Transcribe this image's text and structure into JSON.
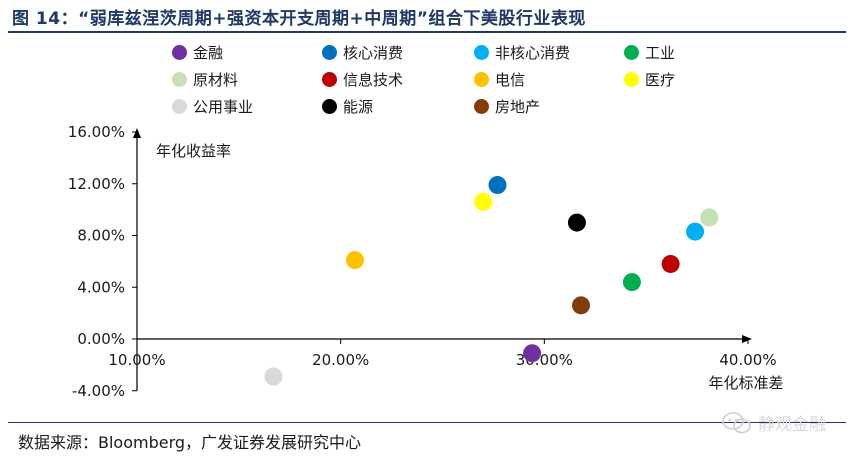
{
  "header": {
    "title": "图 14：“弱库兹涅茨周期+强资本开支周期+中周期”组合下美股行业表现"
  },
  "footer": {
    "source": "数据来源：Bloomberg，广发证券发展研究中心",
    "watermark": "静观金融"
  },
  "chart_data": {
    "type": "scatter",
    "xlabel": "年化标准差",
    "ylabel": "年化收益率",
    "xlim": [
      0.1,
      0.4
    ],
    "ylim": [
      -0.04,
      0.16
    ],
    "x_ticks": [
      "10.00%",
      "20.00%",
      "30.00%",
      "40.00%"
    ],
    "y_ticks": [
      "16.00%",
      "12.00%",
      "8.00%",
      "4.00%",
      "0.00%",
      "-4.00%"
    ],
    "grid": false,
    "legend_position": "top",
    "series": [
      {
        "name": "金融",
        "color": "#7030a0",
        "x": 0.294,
        "y": -0.011
      },
      {
        "name": "核心消费",
        "color": "#0070c0",
        "x": 0.277,
        "y": 0.119
      },
      {
        "name": "非核心消费",
        "color": "#00b0f0",
        "x": 0.374,
        "y": 0.083
      },
      {
        "name": "工业",
        "color": "#00b050",
        "x": 0.343,
        "y": 0.044
      },
      {
        "name": "原材料",
        "color": "#c5e0b4",
        "x": 0.381,
        "y": 0.094
      },
      {
        "name": "信息技术",
        "color": "#c00000",
        "x": 0.362,
        "y": 0.058
      },
      {
        "name": "电信",
        "color": "#ffc000",
        "x": 0.207,
        "y": 0.061
      },
      {
        "name": "医疗",
        "color": "#ffff00",
        "x": 0.27,
        "y": 0.106
      },
      {
        "name": "公用事业",
        "color": "#d9d9d9",
        "x": 0.167,
        "y": -0.029
      },
      {
        "name": "能源",
        "color": "#000000",
        "x": 0.316,
        "y": 0.09
      },
      {
        "name": "房地产",
        "color": "#843c0c",
        "x": 0.318,
        "y": 0.026
      }
    ]
  }
}
